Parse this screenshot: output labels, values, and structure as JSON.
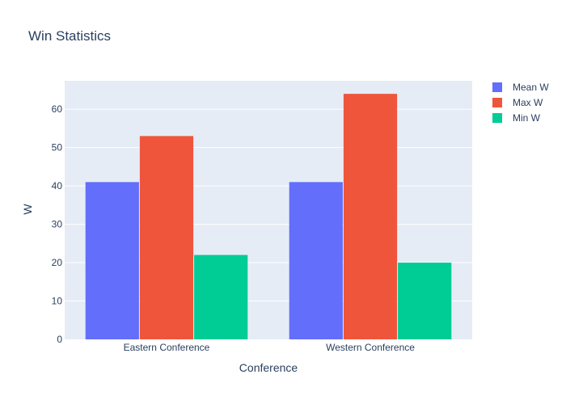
{
  "chart_data": {
    "type": "bar",
    "title": "Win Statistics",
    "xlabel": "Conference",
    "ylabel": "W",
    "categories": [
      "Eastern Conference",
      "Western Conference"
    ],
    "series": [
      {
        "name": "Mean W",
        "values": [
          41,
          41
        ],
        "color": "#636efa"
      },
      {
        "name": "Max W",
        "values": [
          53,
          64
        ],
        "color": "#ef553b"
      },
      {
        "name": "Min W",
        "values": [
          22,
          20
        ],
        "color": "#00cc96"
      }
    ],
    "ylim": [
      0,
      67.4
    ],
    "yticks": [
      0,
      10,
      20,
      30,
      40,
      50,
      60
    ],
    "grid": true,
    "legend_position": "top-right",
    "plot_background": "#e5ecf6"
  }
}
